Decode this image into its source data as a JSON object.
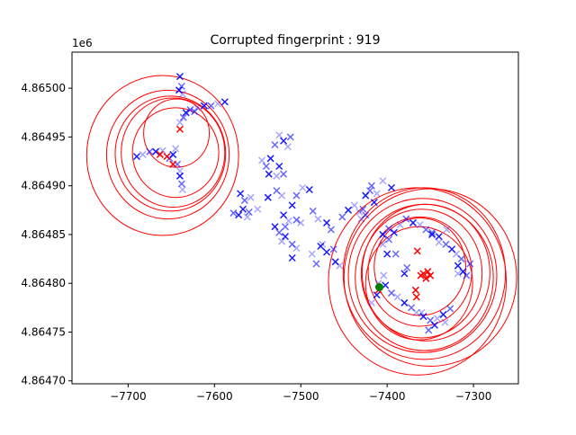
{
  "chart_data": {
    "type": "scatter",
    "title": "Corrupted fingerprint : 919",
    "xlabel": "",
    "ylabel": "",
    "y_offset_label": "1e6",
    "xlim": [
      -7765,
      -7248
    ],
    "ylim": [
      4864697,
      4865037
    ],
    "x_ticks": [
      -7700,
      -7600,
      -7500,
      -7400,
      -7300
    ],
    "x_tick_labels": [
      "−7700",
      "−7600",
      "−7500",
      "−7400",
      "−7300"
    ],
    "y_ticks": [
      4864700,
      4864750,
      4864800,
      4864850,
      4864900,
      4864950,
      4865000
    ],
    "y_tick_labels": [
      "4.86470",
      "4.86475",
      "4.86480",
      "4.86485",
      "4.86490",
      "4.86495",
      "4.86500"
    ],
    "grid": false,
    "legend": "none",
    "series": [
      {
        "marker": "x",
        "color": "#0000ff",
        "opacity": "mixed",
        "points": [
          [
            -7640,
            4865012
          ],
          [
            -7638,
            4865002
          ],
          [
            -7637,
            4864994
          ],
          [
            -7641,
            4864998
          ],
          [
            -7636,
            4864970
          ],
          [
            -7640,
            4864965
          ],
          [
            -7633,
            4864975
          ],
          [
            -7628,
            4864978
          ],
          [
            -7620,
            4864980
          ],
          [
            -7612,
            4864982
          ],
          [
            -7604,
            4864982
          ],
          [
            -7596,
            4864984
          ],
          [
            -7588,
            4864986
          ],
          [
            -7623,
            4864976
          ],
          [
            -7645,
            4864938
          ],
          [
            -7648,
            4864932
          ],
          [
            -7652,
            4864928
          ],
          [
            -7660,
            4864936
          ],
          [
            -7668,
            4864935
          ],
          [
            -7675,
            4864935
          ],
          [
            -7683,
            4864932
          ],
          [
            -7690,
            4864930
          ],
          [
            -7643,
            4864922
          ],
          [
            -7640,
            4864915
          ],
          [
            -7640,
            4864910
          ],
          [
            -7638,
            4864902
          ],
          [
            -7637,
            4864896
          ],
          [
            -7570,
            4864892
          ],
          [
            -7565,
            4864885
          ],
          [
            -7558,
            4864888
          ],
          [
            -7567,
            4864876
          ],
          [
            -7560,
            4864873
          ],
          [
            -7562,
            4864868
          ],
          [
            -7572,
            4864870
          ],
          [
            -7578,
            4864872
          ],
          [
            -7550,
            4864876
          ],
          [
            -7538,
            4864888
          ],
          [
            -7528,
            4864895
          ],
          [
            -7522,
            4864890
          ],
          [
            -7520,
            4864870
          ],
          [
            -7518,
            4864858
          ],
          [
            -7514,
            4864864
          ],
          [
            -7510,
            4864880
          ],
          [
            -7505,
            4864865
          ],
          [
            -7500,
            4864862
          ],
          [
            -7530,
            4864858
          ],
          [
            -7525,
            4864852
          ],
          [
            -7522,
            4864843
          ],
          [
            -7518,
            4864848
          ],
          [
            -7510,
            4864840
          ],
          [
            -7505,
            4864836
          ],
          [
            -7510,
            4864826
          ],
          [
            -7530,
            4864942
          ],
          [
            -7525,
            4864952
          ],
          [
            -7520,
            4864946
          ],
          [
            -7512,
            4864950
          ],
          [
            -7515,
            4864940
          ],
          [
            -7535,
            4864928
          ],
          [
            -7540,
            4864920
          ],
          [
            -7545,
            4864926
          ],
          [
            -7525,
            4864920
          ],
          [
            -7520,
            4864912
          ],
          [
            -7528,
            4864910
          ],
          [
            -7537,
            4864912
          ],
          [
            -7505,
            4864890
          ],
          [
            -7498,
            4864898
          ],
          [
            -7490,
            4864896
          ],
          [
            -7486,
            4864874
          ],
          [
            -7480,
            4864866
          ],
          [
            -7470,
            4864862
          ],
          [
            -7465,
            4864855
          ],
          [
            -7475,
            4864840
          ],
          [
            -7470,
            4864832
          ],
          [
            -7462,
            4864835
          ],
          [
            -7455,
            4864818
          ],
          [
            -7460,
            4864822
          ],
          [
            -7428,
            4864876
          ],
          [
            -7432,
            4864873
          ],
          [
            -7425,
            4864890
          ],
          [
            -7420,
            4864895
          ],
          [
            -7412,
            4864892
          ],
          [
            -7415,
            4864883
          ],
          [
            -7425,
            4864870
          ],
          [
            -7430,
            4864866
          ],
          [
            -7405,
            4864850
          ],
          [
            -7398,
            4864856
          ],
          [
            -7410,
            4864800
          ],
          [
            -7402,
            4864798
          ],
          [
            -7395,
            4864790
          ],
          [
            -7388,
            4864786
          ],
          [
            -7380,
            4864780
          ],
          [
            -7372,
            4864775
          ],
          [
            -7366,
            4864770
          ],
          [
            -7358,
            4864766
          ],
          [
            -7350,
            4864762
          ],
          [
            -7342,
            4864764
          ],
          [
            -7335,
            4864768
          ],
          [
            -7327,
            4864774
          ],
          [
            -7333,
            4864760
          ],
          [
            -7345,
            4864757
          ],
          [
            -7352,
            4864752
          ],
          [
            -7360,
            4864770
          ],
          [
            -7318,
            4864818
          ],
          [
            -7314,
            4864825
          ],
          [
            -7320,
            4864830
          ],
          [
            -7325,
            4864835
          ],
          [
            -7332,
            4864840
          ],
          [
            -7340,
            4864842
          ],
          [
            -7348,
            4864850
          ],
          [
            -7355,
            4864855
          ],
          [
            -7362,
            4864860
          ],
          [
            -7370,
            4864862
          ],
          [
            -7378,
            4864866
          ],
          [
            -7385,
            4864860
          ],
          [
            -7392,
            4864852
          ],
          [
            -7398,
            4864845
          ],
          [
            -7405,
            4864840
          ],
          [
            -7312,
            4864812
          ],
          [
            -7308,
            4864808
          ],
          [
            -7318,
            4864810
          ],
          [
            -7380,
            4864810
          ],
          [
            -7377,
            4864816
          ],
          [
            -7404,
            4864808
          ],
          [
            -7400,
            4864830
          ],
          [
            -7390,
            4864830
          ],
          [
            -7405,
            4864905
          ],
          [
            -7395,
            4864898
          ],
          [
            -7418,
            4864900
          ],
          [
            -7438,
            4864880
          ],
          [
            -7445,
            4864875
          ],
          [
            -7452,
            4864868
          ],
          [
            -7487,
            4864830
          ],
          [
            -7477,
            4864838
          ],
          [
            -7482,
            4864820
          ],
          [
            -7418,
            4864780
          ],
          [
            -7412,
            4864788
          ],
          [
            -7304,
            4864820
          ],
          [
            -7331,
            4864855
          ],
          [
            -7340,
            4864848
          ],
          [
            -7348,
            4864852
          ]
        ]
      },
      {
        "marker": "x",
        "color": "#ff0000",
        "points": [
          [
            -7640,
            4864958
          ],
          [
            -7663,
            4864932
          ],
          [
            -7655,
            4864930
          ],
          [
            -7648,
            4864922
          ],
          [
            -7365,
            4864833
          ],
          [
            -7358,
            4864810
          ],
          [
            -7353,
            4864812
          ],
          [
            -7350,
            4864808
          ],
          [
            -7361,
            4864808
          ],
          [
            -7355,
            4864805
          ],
          [
            -7367,
            4864793
          ],
          [
            -7366,
            4864786
          ],
          [
            -7410,
            4864793
          ]
        ]
      },
      {
        "marker": "circle",
        "color": "#008000",
        "points": [
          [
            -7409,
            4864796
          ]
        ]
      }
    ],
    "ellipses": [
      {
        "cx": -7644,
        "cy": 4864954,
        "rx": 38,
        "ry": 35
      },
      {
        "cx": -7648,
        "cy": 4864934,
        "rx": 60,
        "ry": 56
      },
      {
        "cx": -7651,
        "cy": 4864933,
        "rx": 64,
        "ry": 59
      },
      {
        "cx": -7654,
        "cy": 4864932,
        "rx": 71,
        "ry": 66
      },
      {
        "cx": -7660,
        "cy": 4864931,
        "rx": 88,
        "ry": 82
      },
      {
        "cx": -7645,
        "cy": 4864934,
        "rx": 50,
        "ry": 46
      },
      {
        "cx": -7362,
        "cy": 4864817,
        "rx": 53,
        "ry": 50
      },
      {
        "cx": -7362,
        "cy": 4864812,
        "rx": 60,
        "ry": 56
      },
      {
        "cx": -7360,
        "cy": 4864810,
        "rx": 70,
        "ry": 66
      },
      {
        "cx": -7355,
        "cy": 4864811,
        "rx": 74,
        "ry": 70
      },
      {
        "cx": -7357,
        "cy": 4864806,
        "rx": 80,
        "ry": 75
      },
      {
        "cx": -7359,
        "cy": 4864808,
        "rx": 86,
        "ry": 79
      },
      {
        "cx": -7357,
        "cy": 4864810,
        "rx": 94,
        "ry": 88
      },
      {
        "cx": -7350,
        "cy": 4864806,
        "rx": 100,
        "ry": 91
      },
      {
        "cx": -7365,
        "cy": 4864802,
        "rx": 103,
        "ry": 96
      },
      {
        "cx": -7363,
        "cy": 4864800,
        "rx": 62,
        "ry": 58
      }
    ]
  }
}
